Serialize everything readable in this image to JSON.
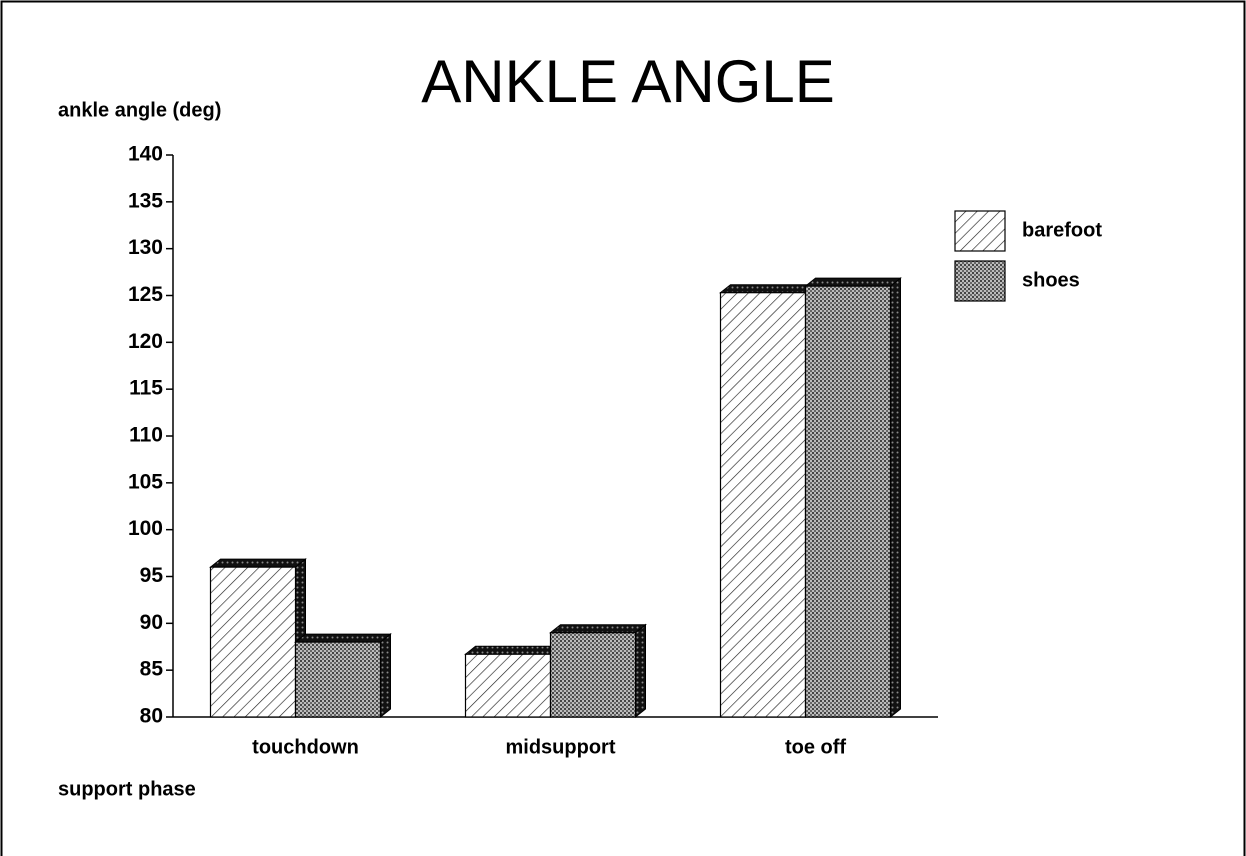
{
  "chart_data": {
    "type": "bar",
    "title": "ANKLE ANGLE",
    "y_label": "ankle angle (deg)",
    "x_label": "support phase",
    "categories": [
      "touchdown",
      "midsupport",
      "toe off"
    ],
    "series": [
      {
        "name": "barefoot",
        "values": [
          96,
          86.7,
          125.3
        ]
      },
      {
        "name": "shoes",
        "values": [
          88,
          89,
          126
        ]
      }
    ],
    "ylim": [
      80,
      140
    ],
    "yticks": [
      80,
      85,
      90,
      95,
      100,
      105,
      110,
      115,
      120,
      125,
      130,
      135,
      140
    ],
    "legend": "right"
  }
}
